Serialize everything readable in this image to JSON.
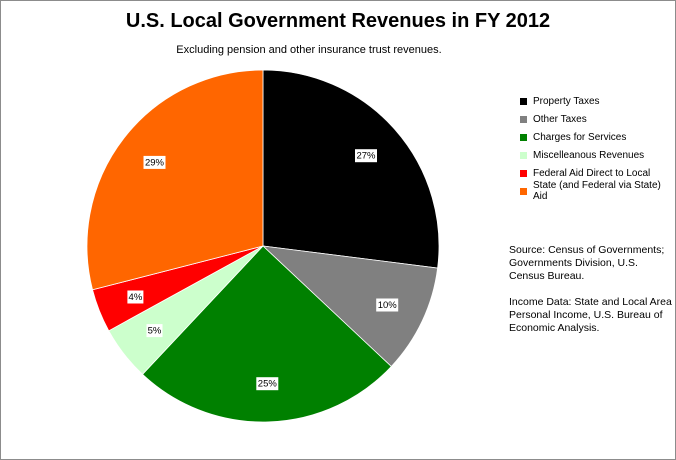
{
  "chart_data": {
    "type": "pie",
    "title": "U.S. Local Government Revenues in FY 2012",
    "subtitle": "Excluding pension and other insurance trust revenues.",
    "slices": [
      {
        "label": "Property Taxes",
        "value": 27,
        "data_label": "27%",
        "color": "#000000"
      },
      {
        "label": "Other Taxes",
        "value": 10,
        "data_label": "10%",
        "color": "#808080"
      },
      {
        "label": "Charges for Services",
        "value": 25,
        "data_label": "25%",
        "color": "#008000"
      },
      {
        "label": "Miscelleanous Revenues",
        "value": 5,
        "data_label": "5%",
        "color": "#ccffcc"
      },
      {
        "label": "Federal Aid Direct to Local",
        "value": 4,
        "data_label": "4%",
        "color": "#ff0000"
      },
      {
        "label": "State (and Federal via State) Aid",
        "value": 29,
        "data_label": "29%",
        "color": "#ff6600"
      }
    ],
    "legend_position": "right"
  },
  "notes": {
    "source": "Source:  Census of Governments; Governments Division, U.S. Census Bureau.",
    "income": "Income Data:  State and Local Area Personal Income, U.S. Bureau of Economic Analysis."
  }
}
